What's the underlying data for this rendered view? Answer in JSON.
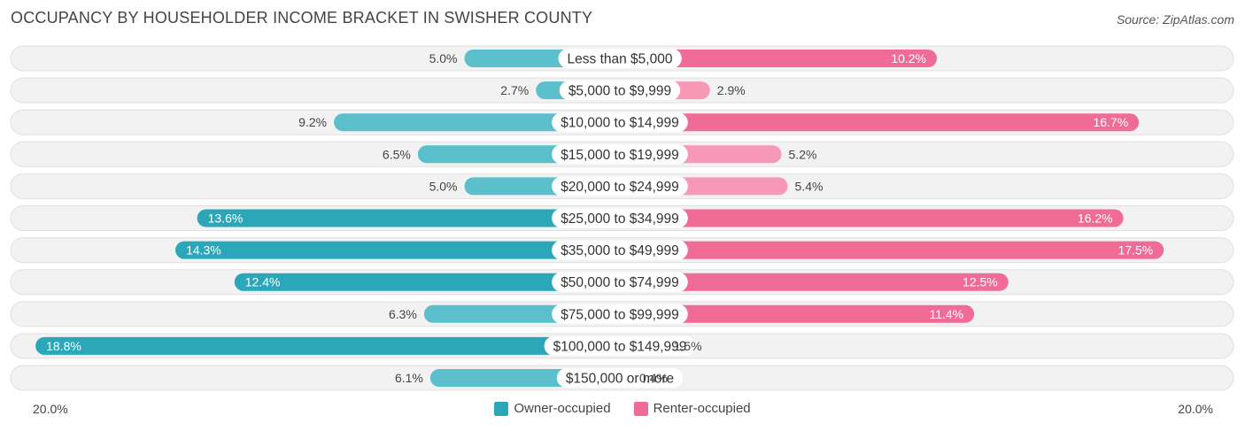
{
  "chart_data": {
    "type": "bar",
    "orientation": "horizontal-diverging",
    "title": "OCCUPANCY BY HOUSEHOLDER INCOME BRACKET IN SWISHER COUNTY",
    "source": "Source: ZipAtlas.com",
    "categories": [
      "Less than $5,000",
      "$5,000 to $9,999",
      "$10,000 to $14,999",
      "$15,000 to $19,999",
      "$20,000 to $24,999",
      "$25,000 to $34,999",
      "$35,000 to $49,999",
      "$50,000 to $74,999",
      "$75,000 to $99,999",
      "$100,000 to $149,999",
      "$150,000 or more"
    ],
    "series": [
      {
        "name": "Owner-occupied",
        "color": "#5bbfcc",
        "color_strong": "#2aa8ba",
        "values": [
          5.0,
          2.7,
          9.2,
          6.5,
          5.0,
          13.6,
          14.3,
          12.4,
          6.3,
          18.8,
          6.1
        ],
        "labels": [
          "5.0%",
          "2.7%",
          "9.2%",
          "6.5%",
          "5.0%",
          "13.6%",
          "14.3%",
          "12.4%",
          "6.3%",
          "18.8%",
          "6.1%"
        ]
      },
      {
        "name": "Renter-occupied",
        "color": "#f799b6",
        "color_strong": "#f06c96",
        "values": [
          10.2,
          2.9,
          16.7,
          5.2,
          5.4,
          16.2,
          17.5,
          12.5,
          11.4,
          1.5,
          0.4
        ],
        "labels": [
          "10.2%",
          "2.9%",
          "16.7%",
          "5.2%",
          "5.4%",
          "16.2%",
          "17.5%",
          "12.5%",
          "11.4%",
          "1.5%",
          "0.4%"
        ]
      }
    ],
    "xlim": [
      -20,
      20
    ],
    "axis_left_label": "20.0%",
    "axis_right_label": "20.0%",
    "legend_position": "bottom-center"
  }
}
